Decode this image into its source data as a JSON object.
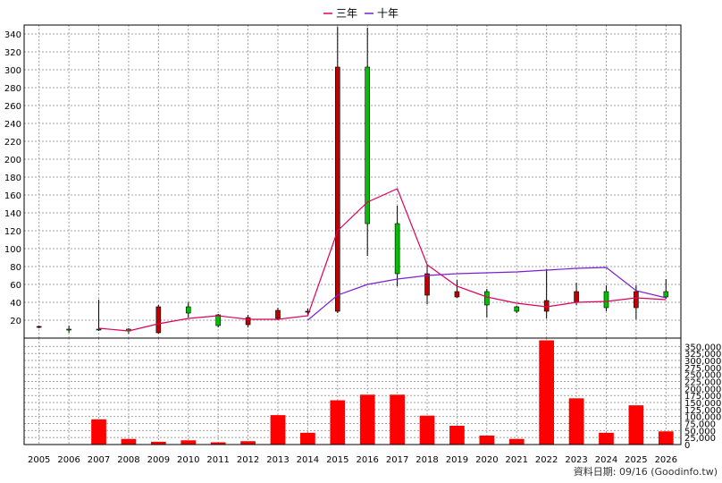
{
  "chart_data": {
    "type": "candlestick",
    "legend": [
      {
        "label": "三年",
        "color": "#e0005a"
      },
      {
        "label": "十年",
        "color": "#7a20d0"
      }
    ],
    "footer": "資料日期: 09/16  (Goodinfo.tw)",
    "colors": {
      "up": "#00c000",
      "down": "#c00000",
      "volume": "#ff0000",
      "grid": "#a0a0a0",
      "ma3": "#e0005a",
      "ma10": "#7a20d0"
    },
    "price_axis": {
      "min": 0,
      "max": 350,
      "ticks": [
        20,
        40,
        60,
        80,
        100,
        120,
        140,
        160,
        180,
        200,
        220,
        240,
        260,
        280,
        300,
        320,
        340
      ],
      "side": "left",
      "grid": true
    },
    "volume_axis": {
      "min": 0,
      "max": 380000,
      "ticks": [
        0,
        25000,
        50000,
        75000,
        100000,
        125000,
        150000,
        175000,
        200000,
        225000,
        250000,
        275000,
        300000,
        325000,
        350000
      ],
      "tick_labels": [
        "0",
        "25,000",
        "50,000",
        "75,000",
        "100,000",
        "125,000",
        "150,000",
        "175,000",
        "200,000",
        "225,000",
        "250,000",
        "275,000",
        "300,000",
        "325,000",
        "350,000"
      ],
      "side": "right"
    },
    "categories": [
      "2005",
      "2006",
      "2007",
      "2008",
      "2009",
      "2010",
      "2011",
      "2012",
      "2013",
      "2014",
      "2015",
      "2016",
      "2017",
      "2018",
      "2019",
      "2020",
      "2021",
      "2022",
      "2023",
      "2024",
      "2025",
      "2026"
    ],
    "ohlc": [
      {
        "open": 13,
        "high": 14,
        "low": 11,
        "close": 12
      },
      {
        "open": 10,
        "high": 14,
        "low": 6,
        "close": 10
      },
      {
        "open": 10,
        "high": 43,
        "low": 8,
        "close": 10
      },
      {
        "open": 8,
        "high": 11,
        "low": 5,
        "close": 10
      },
      {
        "open": 35,
        "high": 37,
        "low": 5,
        "close": 6
      },
      {
        "open": 28,
        "high": 40,
        "low": 23,
        "close": 35
      },
      {
        "open": 14,
        "high": 27,
        "low": 12,
        "close": 26
      },
      {
        "open": 23,
        "high": 26,
        "low": 12,
        "close": 15
      },
      {
        "open": 31,
        "high": 34,
        "low": 20,
        "close": 22
      },
      {
        "open": 30,
        "high": 33,
        "low": 25,
        "close": 29
      },
      {
        "open": 303,
        "high": 348,
        "low": 28,
        "close": 30
      },
      {
        "open": 128,
        "high": 347,
        "low": 92,
        "close": 303
      },
      {
        "open": 72,
        "high": 148,
        "low": 58,
        "close": 128
      },
      {
        "open": 72,
        "high": 82,
        "low": 38,
        "close": 48
      },
      {
        "open": 52,
        "high": 65,
        "low": 45,
        "close": 46
      },
      {
        "open": 37,
        "high": 55,
        "low": 23,
        "close": 52
      },
      {
        "open": 30,
        "high": 36,
        "low": 28,
        "close": 35
      },
      {
        "open": 42,
        "high": 77,
        "low": 22,
        "close": 30
      },
      {
        "open": 52,
        "high": 62,
        "low": 37,
        "close": 40
      },
      {
        "open": 34,
        "high": 59,
        "low": 30,
        "close": 52
      },
      {
        "open": 52,
        "high": 59,
        "low": 21,
        "close": 34
      },
      {
        "open": 46,
        "high": 66,
        "low": 44,
        "close": 52
      }
    ],
    "ma3": [
      null,
      null,
      11,
      8,
      16,
      22,
      25,
      21,
      21,
      25,
      120,
      152,
      167,
      82,
      58,
      46,
      39,
      35,
      40,
      41,
      45,
      43
    ],
    "ma10": [
      null,
      null,
      null,
      null,
      null,
      null,
      null,
      null,
      null,
      20,
      48,
      60,
      66,
      70,
      72,
      73,
      74,
      76,
      78,
      79,
      53,
      45
    ],
    "volume": [
      200,
      200,
      90000,
      20000,
      10000,
      15000,
      8000,
      12000,
      105000,
      42000,
      158000,
      178000,
      178000,
      103000,
      67000,
      32000,
      20000,
      372000,
      165000,
      42000,
      140000,
      47000
    ]
  }
}
